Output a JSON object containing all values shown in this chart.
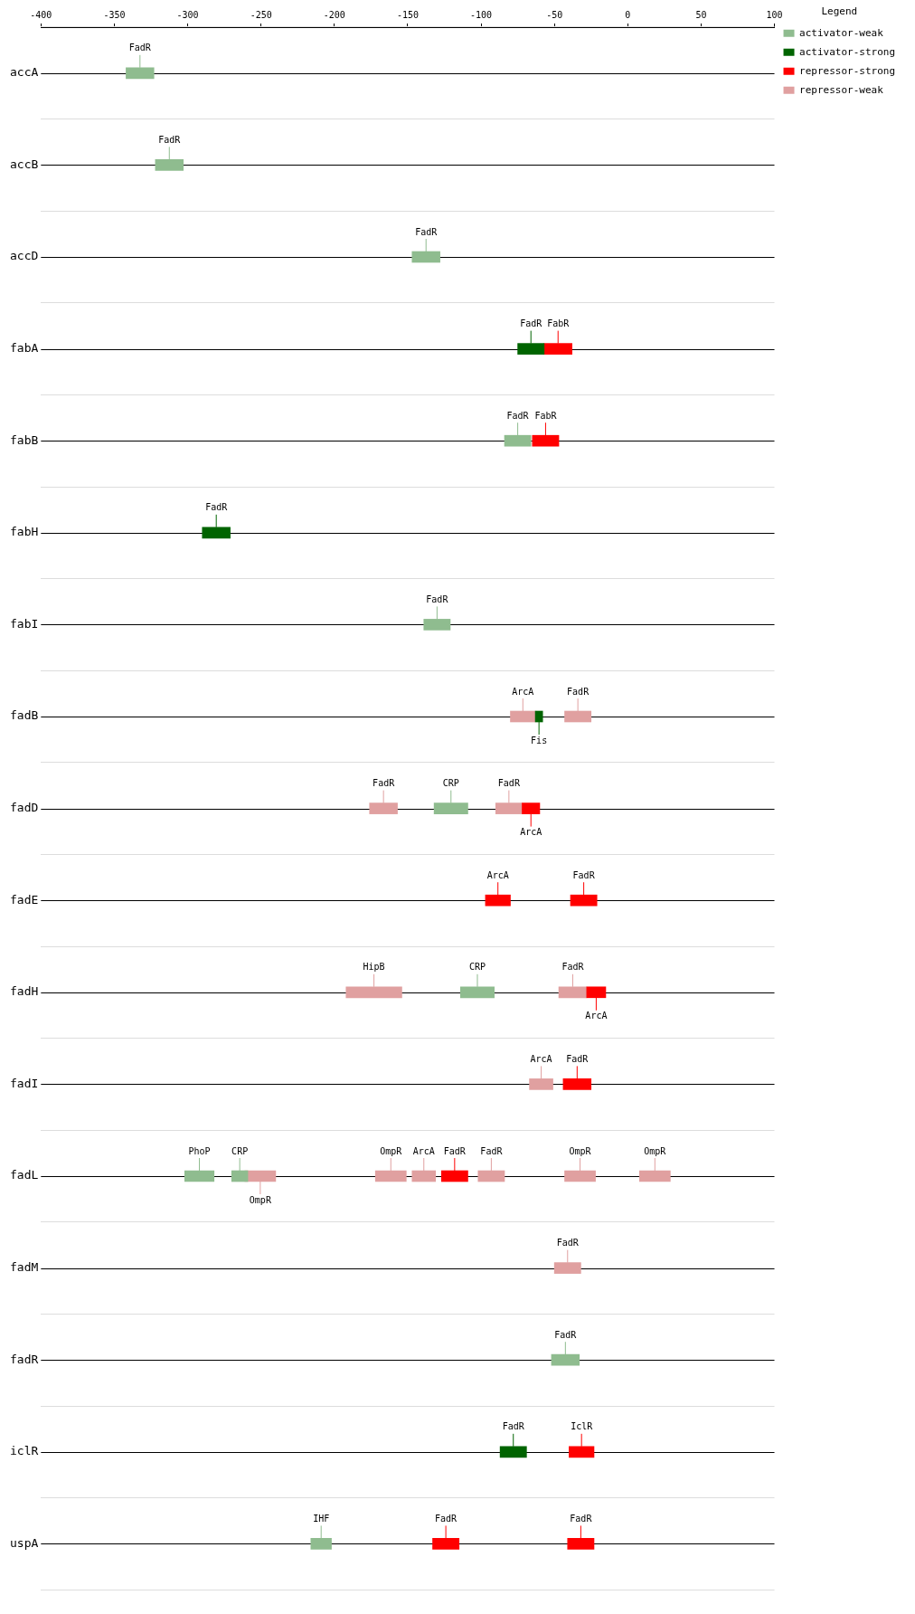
{
  "chart_data": {
    "type": "bar",
    "orientation": "horizontal",
    "legend": "top right",
    "legend_title": "Legend",
    "grid": "y",
    "categories": [
      "accA",
      "accB",
      "accD",
      "fabA",
      "fabB",
      "fabH",
      "fabI",
      "fadB",
      "fadD",
      "fadE",
      "fadH",
      "fadI",
      "fadL",
      "fadM",
      "fadR",
      "iclR",
      "uspA"
    ],
    "xlim": [
      -400,
      100
    ],
    "xticks": [
      -400,
      -350,
      -300,
      -250,
      -200,
      -150,
      -100,
      -50,
      0,
      50,
      100
    ],
    "series": [
      {
        "name": "activator-weak",
        "color": "#8fbc8f",
        "base": [
          -342,
          -322,
          -147,
          null,
          -84,
          null,
          -139,
          null,
          -132,
          null,
          -114,
          null,
          -302,
          null,
          -52,
          null,
          -216
        ],
        "values": [
          19,
          19,
          19,
          null,
          18,
          null,
          18,
          null,
          23,
          null,
          23,
          null,
          20,
          null,
          19,
          null,
          14
        ],
        "value_labels": [
          "FadR",
          "FadR",
          "FadR",
          null,
          "FadR",
          null,
          "FadR",
          null,
          "CRP",
          null,
          "CRP",
          null,
          "PhoP",
          null,
          "FadR",
          null,
          "IHF"
        ]
      },
      {
        "color": "#8fbc8f",
        "base": [
          null,
          null,
          null,
          null,
          null,
          null,
          null,
          null,
          null,
          null,
          null,
          null,
          -270,
          null,
          null,
          null,
          null
        ],
        "values": [
          null,
          null,
          null,
          null,
          null,
          null,
          null,
          null,
          null,
          null,
          null,
          null,
          11,
          null,
          null,
          null,
          null
        ],
        "value_labels": [
          null,
          null,
          null,
          null,
          null,
          null,
          null,
          null,
          null,
          null,
          null,
          null,
          "CRP",
          null,
          null,
          null,
          null
        ]
      },
      {
        "name": "activator-strong",
        "color": "#006400",
        "base": [
          null,
          null,
          null,
          -75,
          null,
          -290,
          null,
          -63,
          null,
          null,
          null,
          null,
          null,
          null,
          null,
          -87,
          null
        ],
        "values": [
          null,
          null,
          null,
          18,
          null,
          19,
          null,
          5,
          null,
          null,
          null,
          null,
          null,
          null,
          null,
          18,
          null
        ],
        "value_labels": [
          null,
          null,
          null,
          "FadR",
          null,
          "FadR",
          null,
          "Fis",
          null,
          null,
          null,
          null,
          null,
          null,
          null,
          "FadR",
          null
        ]
      },
      {
        "name": "repressor-strong",
        "color": "#ff0000",
        "base": [
          null,
          null,
          null,
          -57,
          -65,
          null,
          null,
          null,
          -72,
          -97,
          -28,
          -44,
          -127,
          null,
          null,
          -40,
          -133
        ],
        "values": [
          null,
          null,
          null,
          19,
          18,
          null,
          null,
          null,
          12,
          17,
          13,
          19,
          18,
          null,
          null,
          17,
          18
        ],
        "value_labels": [
          null,
          null,
          null,
          "FabR",
          "FabR",
          null,
          null,
          null,
          "ArcA",
          "ArcA",
          "ArcA",
          "FadR",
          "FadR",
          null,
          null,
          "IclR",
          "FadR"
        ]
      },
      {
        "color": "#ff0000",
        "base": [
          null,
          null,
          null,
          null,
          null,
          null,
          null,
          null,
          null,
          -39,
          null,
          null,
          null,
          null,
          null,
          null,
          -41
        ],
        "values": [
          null,
          null,
          null,
          null,
          null,
          null,
          null,
          null,
          null,
          18,
          null,
          null,
          null,
          null,
          null,
          null,
          18
        ],
        "value_labels": [
          null,
          null,
          null,
          null,
          null,
          null,
          null,
          null,
          null,
          "FadR",
          null,
          null,
          null,
          null,
          null,
          null,
          "FadR"
        ]
      },
      {
        "name": "repressor-weak",
        "color": "#e0a0a0",
        "base": [
          null,
          null,
          null,
          null,
          null,
          null,
          null,
          -80,
          -176,
          null,
          -192,
          -67,
          -261,
          -50,
          null,
          null,
          null
        ],
        "values": [
          null,
          null,
          null,
          null,
          null,
          null,
          null,
          17,
          19,
          null,
          38,
          16,
          21,
          18,
          null,
          null,
          null
        ],
        "value_labels": [
          null,
          null,
          null,
          null,
          null,
          null,
          null,
          "ArcA",
          "FadR",
          null,
          "HipB",
          "ArcA",
          "OmpR",
          "FadR",
          null,
          null,
          null
        ]
      },
      {
        "color": "#e0a0a0",
        "base": [
          null,
          null,
          null,
          null,
          null,
          null,
          null,
          -43,
          -90,
          null,
          -47,
          null,
          -172,
          null,
          null,
          null,
          null
        ],
        "values": [
          null,
          null,
          null,
          null,
          null,
          null,
          null,
          18,
          18,
          null,
          19,
          null,
          21,
          null,
          null,
          null,
          null
        ],
        "value_labels": [
          null,
          null,
          null,
          null,
          null,
          null,
          null,
          "FadR",
          "FadR",
          null,
          "FadR",
          null,
          "OmpR",
          null,
          null,
          null,
          null
        ]
      },
      {
        "color": "#e0a0a0",
        "base": [
          null,
          null,
          null,
          null,
          null,
          null,
          null,
          null,
          null,
          null,
          null,
          null,
          -147,
          null,
          null,
          null,
          null
        ],
        "values": [
          null,
          null,
          null,
          null,
          null,
          null,
          null,
          null,
          null,
          null,
          null,
          null,
          16,
          null,
          null,
          null,
          null
        ],
        "value_labels": [
          null,
          null,
          null,
          null,
          null,
          null,
          null,
          null,
          null,
          null,
          null,
          null,
          "ArcA",
          null,
          null,
          null,
          null
        ]
      },
      {
        "color": "#e0a0a0",
        "base": [
          null,
          null,
          null,
          null,
          null,
          null,
          null,
          null,
          null,
          null,
          null,
          null,
          -102,
          null,
          null,
          null,
          null
        ],
        "values": [
          null,
          null,
          null,
          null,
          null,
          null,
          null,
          null,
          null,
          null,
          null,
          null,
          18,
          null,
          null,
          null,
          null
        ],
        "value_labels": [
          null,
          null,
          null,
          null,
          null,
          null,
          null,
          null,
          null,
          null,
          null,
          null,
          "FadR",
          null,
          null,
          null,
          null
        ]
      },
      {
        "color": "#e0a0a0",
        "base": [
          null,
          null,
          null,
          null,
          null,
          null,
          null,
          null,
          null,
          null,
          null,
          null,
          -43,
          null,
          null,
          null,
          null
        ],
        "values": [
          null,
          null,
          null,
          null,
          null,
          null,
          null,
          null,
          null,
          null,
          null,
          null,
          21,
          null,
          null,
          null,
          null
        ],
        "value_labels": [
          null,
          null,
          null,
          null,
          null,
          null,
          null,
          null,
          null,
          null,
          null,
          null,
          "OmpR",
          null,
          null,
          null,
          null
        ]
      },
      {
        "color": "#e0a0a0",
        "base": [
          null,
          null,
          null,
          null,
          null,
          null,
          null,
          null,
          null,
          null,
          null,
          null,
          8,
          null,
          null,
          null,
          null
        ],
        "values": [
          null,
          null,
          null,
          null,
          null,
          null,
          null,
          null,
          null,
          null,
          null,
          null,
          21,
          null,
          null,
          null,
          null
        ],
        "value_labels": [
          null,
          null,
          null,
          null,
          null,
          null,
          null,
          null,
          null,
          null,
          null,
          null,
          "OmpR",
          null,
          null,
          null,
          null
        ]
      }
    ]
  }
}
